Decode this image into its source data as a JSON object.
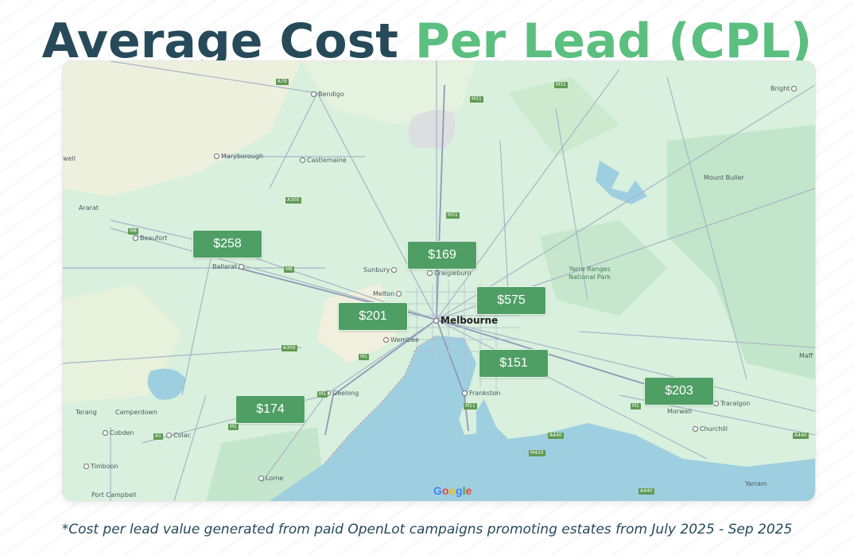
{
  "title": {
    "part1": "Average Cost",
    "part2": "Per Lead (CPL)"
  },
  "colors": {
    "title_dark": "#264a5a",
    "title_accent": "#5bbf7f",
    "marker_fill": "#4f9f65",
    "water": "#9ecfe0",
    "land": "#d8f0dd"
  },
  "map": {
    "attribution": "Google",
    "places": [
      {
        "id": "bendigo",
        "label": "Bendigo",
        "dot": true
      },
      {
        "id": "maryborough",
        "label": "Maryborough",
        "dot": true
      },
      {
        "id": "castlemaine",
        "label": "Castlemaine",
        "dot": true
      },
      {
        "id": "ararat",
        "label": "Ararat",
        "dot": false
      },
      {
        "id": "beaufort",
        "label": "Beaufort",
        "dot": true
      },
      {
        "id": "ballarat",
        "label": "Ballarat",
        "dot": true
      },
      {
        "id": "sunbury",
        "label": "Sunbury",
        "dot": true
      },
      {
        "id": "craigieburn",
        "label": "Craigieburn",
        "dot": true
      },
      {
        "id": "melton",
        "label": "Melton",
        "dot": true
      },
      {
        "id": "melbourne",
        "label": "Melbourne",
        "dot": true
      },
      {
        "id": "werribee",
        "label": "Werribee",
        "dot": true
      },
      {
        "id": "geelong",
        "label": "Geelong",
        "dot": true
      },
      {
        "id": "frankston",
        "label": "Frankston",
        "dot": true
      },
      {
        "id": "terang",
        "label": "Terang",
        "dot": false
      },
      {
        "id": "camperdown",
        "label": "Camperdown",
        "dot": false
      },
      {
        "id": "cobden",
        "label": "Cobden",
        "dot": true
      },
      {
        "id": "colac",
        "label": "Colac",
        "dot": true
      },
      {
        "id": "timboon",
        "label": "Timboon",
        "dot": true
      },
      {
        "id": "port-campbell",
        "label": "Port Campbell",
        "dot": false
      },
      {
        "id": "lorne",
        "label": "Lorne",
        "dot": true
      },
      {
        "id": "morwell",
        "label": "Morwell",
        "dot": false
      },
      {
        "id": "traralgon",
        "label": "Traralgon",
        "dot": true
      },
      {
        "id": "churchill",
        "label": "Churchill",
        "dot": true
      },
      {
        "id": "yarram",
        "label": "Yarram",
        "dot": false
      },
      {
        "id": "bright",
        "label": "Bright",
        "dot": true
      },
      {
        "id": "mount-buller",
        "label": "Mount Buller",
        "dot": true
      },
      {
        "id": "well",
        "label": "well",
        "dot": false
      },
      {
        "id": "maffra",
        "label": "Maff",
        "dot": false
      }
    ],
    "park_label": "Yarra Ranges\nNational Park",
    "road_shields": [
      "A79",
      "M31",
      "M31",
      "A300",
      "M31",
      "M8",
      "M8",
      "A300",
      "M1",
      "M1",
      "M11",
      "A440",
      "M420",
      "A1",
      "M1",
      "A440",
      "A440",
      "M1"
    ]
  },
  "markers": [
    {
      "id": "ballarat",
      "value": "$258"
    },
    {
      "id": "north",
      "value": "$169"
    },
    {
      "id": "east",
      "value": "$575"
    },
    {
      "id": "west",
      "value": "$201"
    },
    {
      "id": "south-east",
      "value": "$151"
    },
    {
      "id": "gippsland",
      "value": "$203"
    },
    {
      "id": "geelong",
      "value": "$174"
    }
  ],
  "footnote": "*Cost per lead value generated from paid OpenLot campaigns promoting estates from July 2025 - Sep 2025"
}
